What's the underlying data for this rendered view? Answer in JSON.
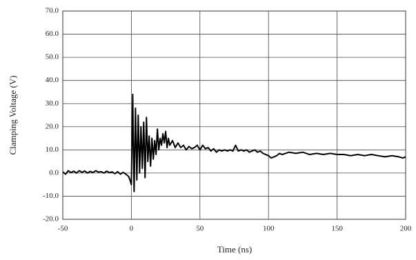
{
  "chart_data": {
    "type": "line",
    "xlabel": "Time (ns)",
    "ylabel": "Clamping Voltage (V)",
    "color": "#000000",
    "grid": true,
    "xlim": [
      -50,
      200
    ],
    "xticks": [
      -50,
      0,
      50,
      100,
      150,
      200
    ],
    "ylim": [
      -20,
      70
    ],
    "yticks": [
      {
        "value": -20,
        "label": "-20.0"
      },
      {
        "value": -10,
        "label": "-10.0"
      },
      {
        "value": 0,
        "label": "0.0"
      },
      {
        "value": 10,
        "label": "10.0"
      },
      {
        "value": 20,
        "label": "20.0"
      },
      {
        "value": 30,
        "label": "30.0"
      },
      {
        "value": 40,
        "label": "40.0"
      },
      {
        "value": 50,
        "label": "50.0"
      },
      {
        "value": 60,
        "label": "60.0"
      },
      {
        "value": 70,
        "label": "70.0"
      }
    ],
    "x": [
      -50,
      -48,
      -46,
      -44,
      -42,
      -40,
      -38,
      -36,
      -34,
      -32,
      -30,
      -28,
      -26,
      -24,
      -22,
      -20,
      -18,
      -16,
      -14,
      -12,
      -10,
      -8,
      -6,
      -4,
      -2,
      -1,
      0,
      0.5,
      1,
      1.5,
      2,
      3,
      4,
      5,
      6,
      7,
      8,
      9,
      10,
      11,
      12,
      13,
      14,
      15,
      16,
      17,
      18,
      19,
      20,
      21,
      22,
      23,
      24,
      25,
      26,
      27,
      28,
      30,
      32,
      34,
      36,
      38,
      40,
      42,
      44,
      46,
      48,
      50,
      52,
      54,
      56,
      58,
      60,
      62,
      64,
      66,
      68,
      70,
      72,
      74,
      76,
      78,
      80,
      82,
      84,
      86,
      88,
      90,
      92,
      94,
      96,
      98,
      100,
      102,
      104,
      106,
      108,
      110,
      115,
      120,
      125,
      130,
      135,
      140,
      145,
      150,
      155,
      160,
      165,
      170,
      175,
      180,
      185,
      190,
      195,
      198,
      200
    ],
    "values": [
      0.5,
      -0.5,
      1,
      0.2,
      0.8,
      0,
      1,
      0.3,
      0.9,
      0,
      0.7,
      0.2,
      1,
      0.4,
      0.6,
      0,
      0.8,
      0.2,
      0.5,
      -0.3,
      0.6,
      -0.5,
      0.3,
      -0.5,
      -1.5,
      -3,
      -5,
      15,
      34,
      10,
      -8,
      28,
      -3,
      25,
      0,
      20,
      2,
      22,
      -2,
      24,
      5,
      16,
      3,
      15,
      6,
      14,
      8,
      19,
      10,
      15,
      12,
      17,
      13,
      18,
      11,
      15,
      12,
      14,
      11,
      13,
      11,
      12,
      10,
      11.5,
      10.5,
      11,
      12,
      10,
      12,
      10.5,
      11,
      9.5,
      10.5,
      9,
      10,
      9.5,
      10,
      9.5,
      10,
      9.5,
      12,
      9.5,
      10,
      9.5,
      10,
      9,
      9.5,
      10,
      9,
      9.5,
      8.5,
      8,
      7.5,
      6.5,
      7,
      7.5,
      8.5,
      8,
      9,
      8.5,
      9,
      8,
      8.5,
      8,
      8.5,
      8,
      8,
      7.5,
      8,
      7.5,
      8,
      7.5,
      7,
      7.5,
      7,
      6.5,
      7
    ]
  }
}
